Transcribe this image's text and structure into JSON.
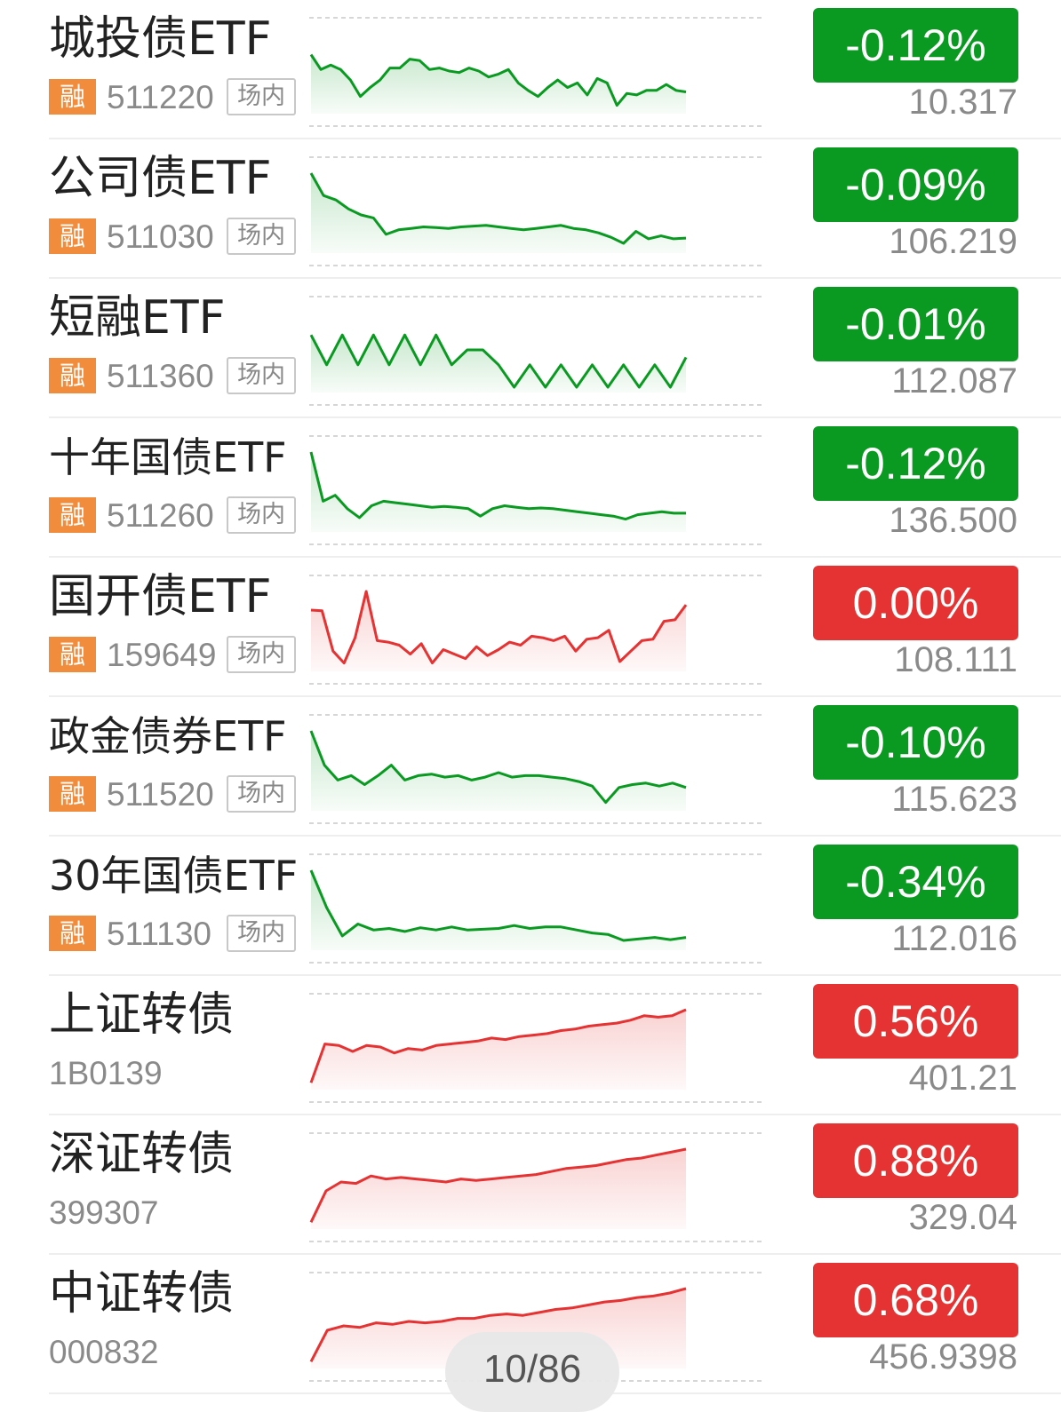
{
  "colors": {
    "down": "#0a9a22",
    "up": "#e53232",
    "tag": "#f08c3c"
  },
  "rows": [
    {
      "name": "城投债ETF",
      "code": "511220",
      "badge": "融",
      "market": "场内",
      "change": "-0.12%",
      "price": "10.317",
      "trend": "down",
      "series": [
        0.28,
        0.48,
        0.42,
        0.48,
        0.62,
        0.84,
        0.72,
        0.62,
        0.46,
        0.46,
        0.34,
        0.36,
        0.48,
        0.46,
        0.5,
        0.52,
        0.46,
        0.5,
        0.58,
        0.54,
        0.48,
        0.66,
        0.76,
        0.84,
        0.72,
        0.62,
        0.72,
        0.66,
        0.82,
        0.6,
        0.66,
        0.96,
        0.8,
        0.82,
        0.76,
        0.76,
        0.68,
        0.76,
        0.78
      ]
    },
    {
      "name": "公司债ETF",
      "code": "511030",
      "badge": "融",
      "market": "场内",
      "change": "-0.09%",
      "price": "106.219",
      "trend": "down",
      "series": [
        0.0,
        0.3,
        0.36,
        0.48,
        0.56,
        0.6,
        0.82,
        0.76,
        0.74,
        0.72,
        0.73,
        0.74,
        0.72,
        0.71,
        0.7,
        0.72,
        0.74,
        0.76,
        0.74,
        0.72,
        0.7,
        0.74,
        0.76,
        0.8,
        0.86,
        0.94,
        0.78,
        0.88,
        0.84,
        0.88,
        0.87
      ]
    },
    {
      "name": "短融ETF",
      "code": "511360",
      "badge": "融",
      "market": "场内",
      "change": "-0.01%",
      "price": "112.087",
      "trend": "down",
      "series": [
        0.3,
        0.7,
        0.3,
        0.7,
        0.3,
        0.7,
        0.3,
        0.7,
        0.3,
        0.7,
        0.5,
        0.5,
        0.7,
        1.0,
        0.7,
        1.0,
        0.7,
        1.0,
        0.7,
        1.0,
        0.7,
        1.0,
        0.7,
        1.0,
        0.6
      ]
    },
    {
      "name": "十年国债ETF",
      "code": "511260",
      "badge": "融",
      "market": "场内",
      "change": "-0.12%",
      "price": "136.500",
      "trend": "down",
      "compact": true,
      "series": [
        0.0,
        0.66,
        0.58,
        0.76,
        0.88,
        0.72,
        0.66,
        0.68,
        0.7,
        0.72,
        0.74,
        0.73,
        0.74,
        0.76,
        0.86,
        0.76,
        0.72,
        0.74,
        0.76,
        0.75,
        0.76,
        0.78,
        0.8,
        0.82,
        0.84,
        0.86,
        0.9,
        0.84,
        0.82,
        0.8,
        0.82,
        0.82
      ]
    },
    {
      "name": "国开债ETF",
      "code": "159649",
      "badge": "融",
      "market": "场内",
      "change": "0.00%",
      "price": "108.111",
      "trend": "up",
      "series": [
        0.25,
        0.26,
        0.8,
        0.96,
        0.62,
        0.0,
        0.66,
        0.68,
        0.72,
        0.84,
        0.7,
        0.96,
        0.78,
        0.84,
        0.9,
        0.74,
        0.86,
        0.78,
        0.68,
        0.72,
        0.6,
        0.62,
        0.66,
        0.6,
        0.8,
        0.64,
        0.62,
        0.52,
        0.94,
        0.8,
        0.66,
        0.64,
        0.4,
        0.38,
        0.18
      ]
    },
    {
      "name": "政金债券ETF",
      "code": "511520",
      "badge": "融",
      "market": "场内",
      "change": "-0.10%",
      "price": "115.623",
      "trend": "down",
      "compact": true,
      "series": [
        0.0,
        0.46,
        0.66,
        0.6,
        0.72,
        0.6,
        0.46,
        0.66,
        0.6,
        0.58,
        0.62,
        0.6,
        0.66,
        0.62,
        0.56,
        0.62,
        0.6,
        0.6,
        0.62,
        0.64,
        0.68,
        0.74,
        0.96,
        0.76,
        0.72,
        0.7,
        0.74,
        0.7,
        0.76
      ]
    },
    {
      "name": "30年国债ETF",
      "code": "511130",
      "badge": "融",
      "market": "场内",
      "change": "-0.34%",
      "price": "112.016",
      "trend": "down",
      "compact": true,
      "series": [
        0.0,
        0.5,
        0.88,
        0.72,
        0.8,
        0.78,
        0.82,
        0.77,
        0.8,
        0.76,
        0.8,
        0.79,
        0.78,
        0.74,
        0.78,
        0.76,
        0.76,
        0.8,
        0.84,
        0.86,
        0.94,
        0.92,
        0.9,
        0.93,
        0.9
      ]
    },
    {
      "name": "上证转债",
      "code": "1B0139",
      "change": "0.56%",
      "price": "401.21",
      "trend": "up",
      "series": [
        0.98,
        0.46,
        0.48,
        0.56,
        0.48,
        0.5,
        0.58,
        0.52,
        0.54,
        0.48,
        0.46,
        0.44,
        0.42,
        0.38,
        0.4,
        0.36,
        0.34,
        0.32,
        0.28,
        0.26,
        0.22,
        0.2,
        0.18,
        0.14,
        0.08,
        0.1,
        0.08,
        0.0
      ]
    },
    {
      "name": "深证转债",
      "code": "399307",
      "change": "0.88%",
      "price": "329.04",
      "trend": "up",
      "series": [
        0.98,
        0.56,
        0.44,
        0.46,
        0.36,
        0.4,
        0.38,
        0.4,
        0.42,
        0.44,
        0.4,
        0.42,
        0.4,
        0.38,
        0.36,
        0.34,
        0.3,
        0.26,
        0.24,
        0.22,
        0.18,
        0.14,
        0.12,
        0.08,
        0.04,
        0.0
      ]
    },
    {
      "name": "中证转债",
      "code": "000832",
      "change": "0.68%",
      "price": "456.9398",
      "trend": "up",
      "series": [
        0.98,
        0.56,
        0.5,
        0.52,
        0.46,
        0.48,
        0.44,
        0.46,
        0.44,
        0.4,
        0.4,
        0.36,
        0.34,
        0.36,
        0.32,
        0.28,
        0.26,
        0.22,
        0.18,
        0.16,
        0.12,
        0.1,
        0.06,
        0.0
      ]
    }
  ],
  "pager": {
    "text": "10/86"
  }
}
